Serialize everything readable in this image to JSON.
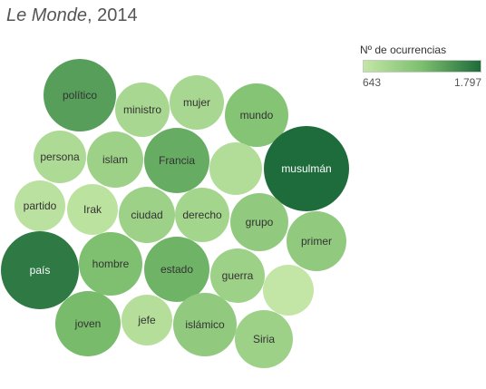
{
  "title": {
    "italic": "Le Monde",
    "rest": ", 2014"
  },
  "legend": {
    "title": "Nº de ocurrencias",
    "min_label": "643",
    "max_label": "1.797",
    "min_value": 643,
    "max_value": 1797,
    "color_low": "#c3e6a6",
    "color_high": "#1e6b3b"
  },
  "chart_data": {
    "type": "packed-bubble",
    "title": "Le Monde, 2014",
    "legend_placement": "top-right",
    "color_metric": "Nº de ocurrencias",
    "bubbles": [
      {
        "label": "político",
        "value": 1450
      },
      {
        "label": "ministro",
        "value": 860
      },
      {
        "label": "mujer",
        "value": 860
      },
      {
        "label": "mundo",
        "value": 1150
      },
      {
        "label": "persona",
        "value": 820
      },
      {
        "label": "islam",
        "value": 950
      },
      {
        "label": "Francia",
        "value": 1350
      },
      {
        "label": "",
        "value": 780
      },
      {
        "label": "musulmán",
        "value": 1797
      },
      {
        "label": "partido",
        "value": 720
      },
      {
        "label": "Irak",
        "value": 700
      },
      {
        "label": "ciudad",
        "value": 950
      },
      {
        "label": "derecho",
        "value": 900
      },
      {
        "label": "grupo",
        "value": 1050
      },
      {
        "label": "primer",
        "value": 1050
      },
      {
        "label": "país",
        "value": 1700
      },
      {
        "label": "hombre",
        "value": 1200
      },
      {
        "label": "estado",
        "value": 1300
      },
      {
        "label": "guerra",
        "value": 950
      },
      {
        "label": "",
        "value": 643
      },
      {
        "label": "joven",
        "value": 1250
      },
      {
        "label": "jefe",
        "value": 760
      },
      {
        "label": "islámico",
        "value": 1050
      },
      {
        "label": "Siria",
        "value": 950
      }
    ]
  }
}
